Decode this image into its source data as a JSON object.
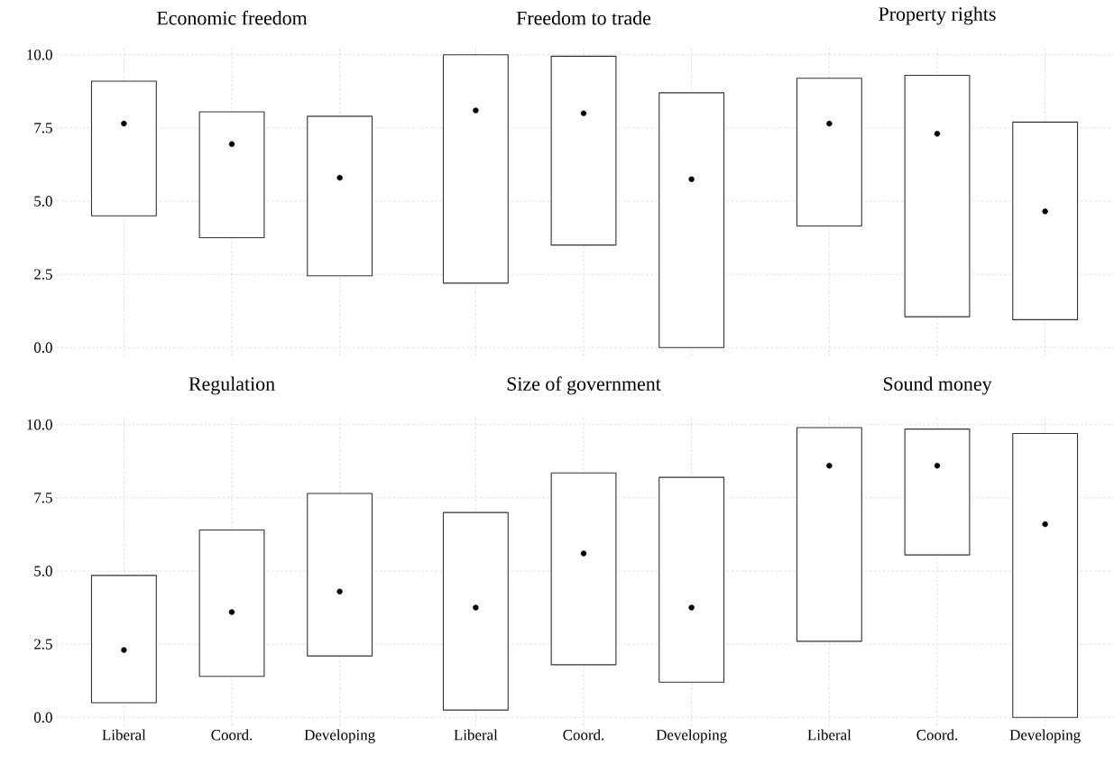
{
  "chart_data": [
    {
      "type": "bar",
      "title": "Economic freedom",
      "categories": [
        "Liberal",
        "Coord.",
        "Developing"
      ],
      "ylim": [
        -0.3,
        10.3
      ],
      "yticks": [
        {
          "value": 0,
          "label": "0.0"
        },
        {
          "value": 2.5,
          "label": "2.5"
        },
        {
          "value": 5,
          "label": "5.0"
        },
        {
          "value": 7.5,
          "label": "7.5"
        },
        {
          "value": 10,
          "label": "10.0"
        }
      ],
      "grid": true,
      "tick_labels": "y",
      "series": [
        {
          "type": "bar",
          "color": "#ffffff",
          "base": [
            4.5,
            3.75,
            2.45
          ],
          "values": [
            4.6,
            4.3,
            5.45
          ]
        },
        {
          "type": "scatter",
          "color": "#000000",
          "marker": "circle",
          "x": [
            "Liberal",
            "Coord.",
            "Developing"
          ],
          "values": [
            7.65,
            6.95,
            5.8
          ]
        }
      ]
    },
    {
      "type": "bar",
      "title": "Freedom to trade",
      "categories": [
        "Liberal",
        "Coord.",
        "Developing"
      ],
      "ylim": [
        -0.3,
        10.3
      ],
      "yticks": [
        {
          "value": 0,
          "label": null
        },
        {
          "value": 2.5,
          "label": null
        },
        {
          "value": 5,
          "label": null
        },
        {
          "value": 7.5,
          "label": null
        },
        {
          "value": 10,
          "label": null
        }
      ],
      "grid": true,
      "tick_labels": false,
      "series": [
        {
          "type": "bar",
          "color": "#ffffff",
          "base": [
            2.2,
            3.5,
            0
          ],
          "values": [
            7.8,
            6.45,
            8.7
          ]
        },
        {
          "type": "scatter",
          "color": "#000000",
          "marker": "circle",
          "x": [
            "Liberal",
            "Coord.",
            "Developing"
          ],
          "values": [
            8.1,
            8.0,
            5.75
          ]
        }
      ]
    },
    {
      "type": "bar",
      "title": "Property rights",
      "categories": [
        "Liberal",
        "Coord.",
        "Developing"
      ],
      "ylim": [
        -0.3,
        10.3
      ],
      "yticks": [
        {
          "value": 0,
          "label": null
        },
        {
          "value": 2.5,
          "label": null
        },
        {
          "value": 5,
          "label": null
        },
        {
          "value": 7.5,
          "label": null
        },
        {
          "value": 10,
          "label": null
        }
      ],
      "grid": true,
      "tick_labels": false,
      "series": [
        {
          "type": "bar",
          "color": "#ffffff",
          "base": [
            4.15,
            1.05,
            0.95
          ],
          "values": [
            5.05,
            8.25,
            6.75
          ]
        },
        {
          "type": "scatter",
          "color": "#000000",
          "marker": "circle",
          "x": [
            "Liberal",
            "Coord.",
            "Developing"
          ],
          "values": [
            7.65,
            7.3,
            4.65
          ]
        }
      ]
    },
    {
      "type": "bar",
      "title": "Regulation",
      "categories": [
        "Liberal",
        "Coord.",
        "Developing"
      ],
      "ylim": [
        -0.3,
        10.3
      ],
      "yticks": [
        {
          "value": 0,
          "label": "0.0"
        },
        {
          "value": 2.5,
          "label": "2.5"
        },
        {
          "value": 5,
          "label": "5.0"
        },
        {
          "value": 7.5,
          "label": "7.5"
        },
        {
          "value": 10,
          "label": "10.0"
        }
      ],
      "grid": true,
      "series": [
        {
          "type": "bar",
          "color": "#ffffff",
          "base": [
            0.5,
            1.4,
            2.1
          ],
          "values": [
            4.35,
            5.0,
            5.55
          ]
        },
        {
          "type": "scatter",
          "color": "#000000",
          "marker": "circle",
          "x": [
            "Liberal",
            "Coord.",
            "Developing"
          ],
          "values": [
            2.3,
            3.6,
            4.3
          ]
        }
      ]
    },
    {
      "type": "bar",
      "title": "Size of government",
      "categories": [
        "Liberal",
        "Coord.",
        "Developing"
      ],
      "ylim": [
        -0.3,
        10.3
      ],
      "yticks": [
        {
          "value": 0,
          "label": null
        },
        {
          "value": 2.5,
          "label": null
        },
        {
          "value": 5,
          "label": null
        },
        {
          "value": 7.5,
          "label": null
        },
        {
          "value": 10,
          "label": null
        }
      ],
      "grid": true,
      "tick_labels": "x",
      "series": [
        {
          "type": "bar",
          "color": "#ffffff",
          "base": [
            0.25,
            1.8,
            1.2
          ],
          "values": [
            6.75,
            6.55,
            7.0
          ]
        },
        {
          "type": "scatter",
          "color": "#000000",
          "marker": "circle",
          "x": [
            "Liberal",
            "Coord.",
            "Developing"
          ],
          "values": [
            3.75,
            5.6,
            3.75
          ]
        }
      ]
    },
    {
      "type": "bar",
      "title": "Sound money",
      "categories": [
        "Liberal",
        "Coord.",
        "Developing"
      ],
      "ylim": [
        -0.3,
        10.3
      ],
      "yticks": [
        {
          "value": 0,
          "label": null
        },
        {
          "value": 2.5,
          "label": null
        },
        {
          "value": 5,
          "label": null
        },
        {
          "value": 7.5,
          "label": null
        },
        {
          "value": 10,
          "label": null
        }
      ],
      "grid": true,
      "tick_labels": "x",
      "series": [
        {
          "type": "bar",
          "color": "#ffffff",
          "base": [
            2.6,
            5.55,
            0
          ],
          "values": [
            7.3,
            4.3,
            9.7
          ]
        },
        {
          "type": "scatter",
          "color": "#000000",
          "marker": "circle",
          "x": [
            "Liberal",
            "Coord.",
            "Developing"
          ],
          "values": [
            8.6,
            8.6,
            6.6
          ]
        }
      ]
    }
  ]
}
